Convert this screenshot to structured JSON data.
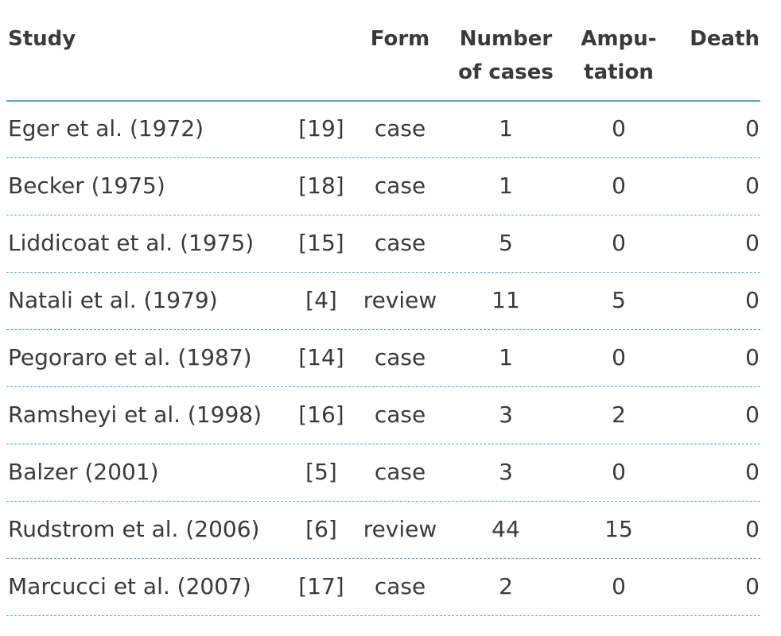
{
  "table": {
    "header": [
      [
        "Study"
      ],
      [
        "Form"
      ],
      [
        "Number",
        "of cases"
      ],
      [
        "Ampu-",
        "tation"
      ],
      [
        "Death"
      ]
    ],
    "rows": [
      [
        "Eger et al. (1972)",
        "[19]",
        "case",
        1,
        0,
        0
      ],
      [
        "Becker (1975)",
        "[18]",
        "case",
        1,
        0,
        0
      ],
      [
        "Liddicoat et al. (1975)",
        "[15]",
        "case",
        5,
        0,
        0
      ],
      [
        "Natali et al. (1979)",
        "[4]",
        "review",
        11,
        5,
        0
      ],
      [
        "Pegoraro et al. (1987)",
        "[14]",
        "case",
        1,
        0,
        0
      ],
      [
        "Ramsheyi et al. (1998)",
        "[16]",
        "case",
        3,
        2,
        0
      ],
      [
        "Balzer (2001)",
        "[5]",
        "case",
        3,
        0,
        0
      ],
      [
        "Rudstrom et al. (2006)",
        "[6]",
        "review",
        44,
        15,
        0
      ],
      [
        "Marcucci et al. (2007)",
        "[17]",
        "case",
        2,
        0,
        0
      ]
    ]
  }
}
